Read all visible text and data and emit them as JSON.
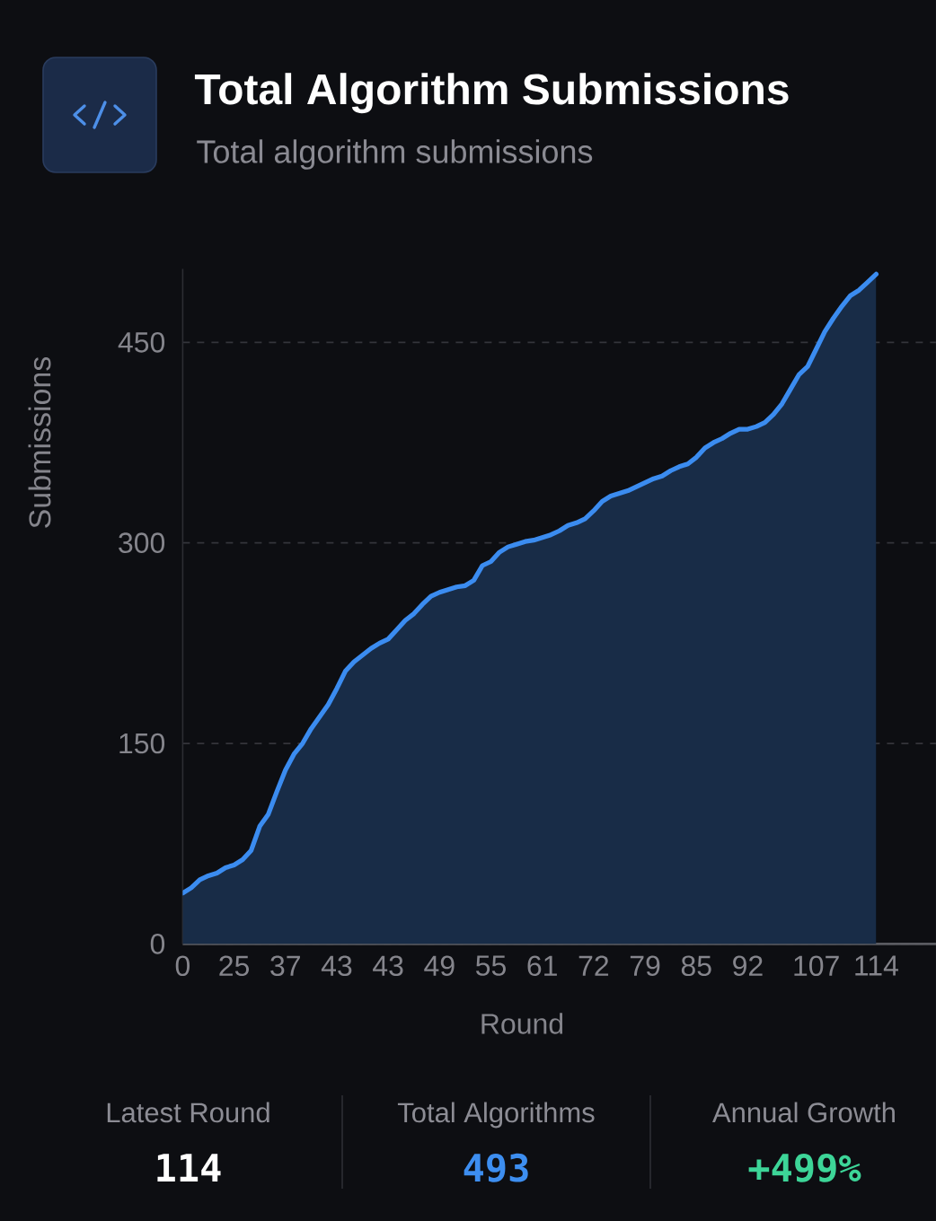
{
  "chart_data": {
    "type": "area",
    "title": "Total Algorithm Submissions",
    "subtitle": "Total algorithm submissions",
    "xlabel": "Round",
    "ylabel": "Submissions",
    "categories": [
      "0",
      null,
      null,
      null,
      null,
      null,
      "25",
      null,
      null,
      null,
      null,
      null,
      "37",
      null,
      null,
      null,
      null,
      null,
      "43",
      null,
      null,
      null,
      null,
      null,
      "43",
      null,
      null,
      null,
      null,
      null,
      "49",
      null,
      null,
      null,
      null,
      null,
      "55",
      null,
      null,
      null,
      null,
      null,
      "61",
      null,
      null,
      null,
      null,
      null,
      "72",
      null,
      null,
      null,
      null,
      null,
      "79",
      null,
      null,
      null,
      null,
      null,
      "85",
      null,
      null,
      null,
      null,
      null,
      "92",
      null,
      null,
      null,
      null,
      null,
      null,
      null,
      "107",
      null,
      null,
      null,
      null,
      null,
      null,
      "114"
    ],
    "values": [
      38,
      42,
      48,
      51,
      53,
      57,
      59,
      63,
      70,
      88,
      97,
      114,
      130,
      142,
      150,
      161,
      170,
      179,
      191,
      204,
      211,
      216,
      221,
      225,
      228,
      235,
      242,
      247,
      254,
      260,
      263,
      265,
      267,
      268,
      272,
      283,
      286,
      293,
      297,
      299,
      301,
      302,
      304,
      306,
      309,
      313,
      315,
      318,
      324,
      331,
      335,
      337,
      339,
      342,
      345,
      348,
      350,
      354,
      357,
      359,
      364,
      371,
      375,
      378,
      382,
      385,
      385,
      387,
      390,
      396,
      404,
      415,
      426,
      432,
      445,
      458,
      468,
      477,
      485,
      489,
      495,
      501
    ],
    "color": "#3b8cf0",
    "ylim": [
      0,
      505
    ],
    "yticks": [
      0,
      150,
      300,
      450
    ],
    "grid": "y",
    "annotations": [
      "Latest Round",
      "114",
      "Total Algorithms",
      "493",
      "Annual Growth",
      "+499%"
    ]
  }
}
